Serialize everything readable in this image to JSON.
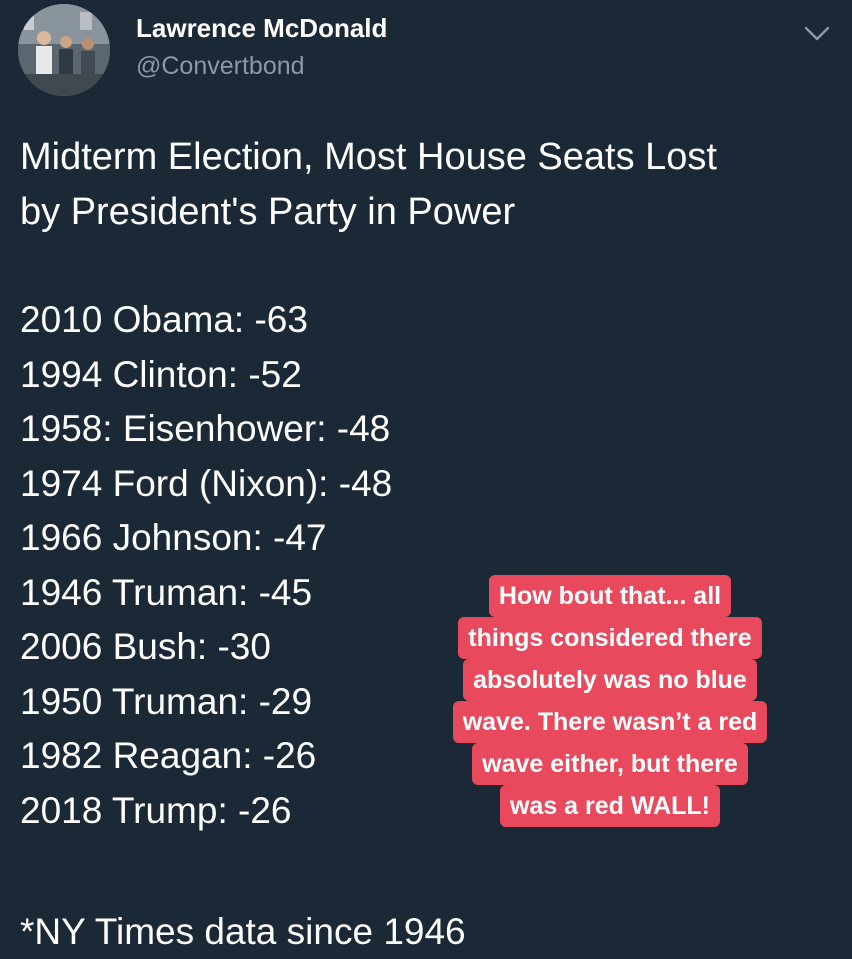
{
  "author": {
    "name": "Lawrence McDonald",
    "handle": "@Convertbond",
    "avatar_icon": "profile-photo-icon"
  },
  "tweet": {
    "title_lines": [
      "Midterm Election, Most House Seats Lost",
      "by President's Party in Power"
    ],
    "entries": [
      "2010 Obama: -63",
      "1994 Clinton: -52",
      "1958: Eisenhower: -48",
      "1974 Ford (Nixon): -48",
      "1966 Johnson: -47",
      "1946 Truman: -45",
      "2006 Bush: -30",
      "1950 Truman: -29",
      "1982 Reagan: -26",
      "2018 Trump: -26"
    ],
    "footnote": "*NY Times data since 1946"
  },
  "sticker": {
    "lines": [
      "How bout that... all",
      "things considered there",
      "absolutely was no blue",
      "wave. There wasn’t a red",
      "wave either, but there",
      "was a red WALL!"
    ]
  },
  "colors": {
    "background": "#1b2836",
    "handle_gray": "#8b98a5",
    "sticker_red": "#e8495c"
  }
}
